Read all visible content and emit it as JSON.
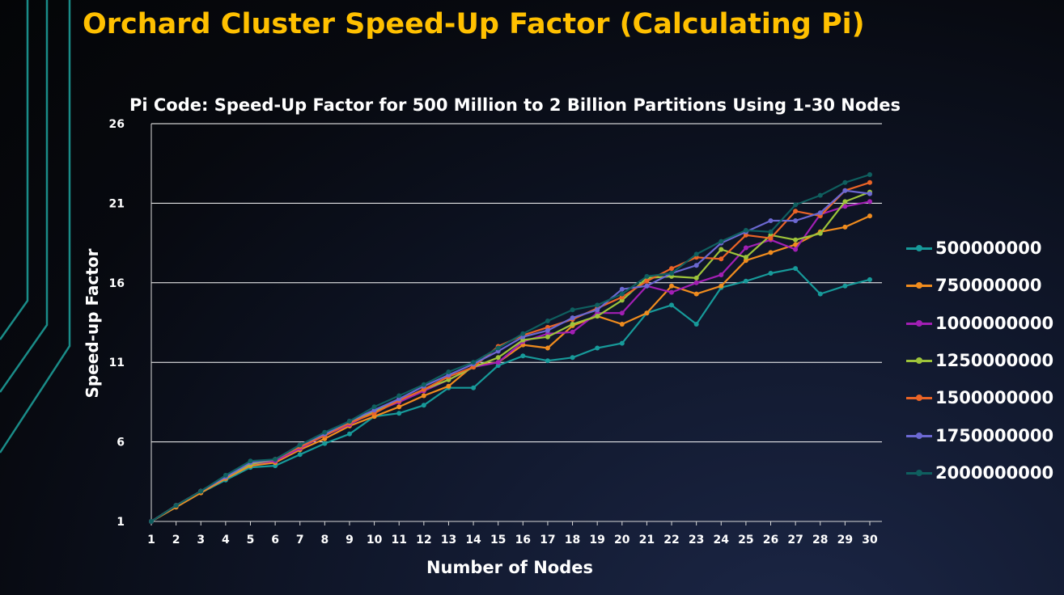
{
  "slide": {
    "title": "Orchard Cluster Speed-Up Factor (Calculating Pi)",
    "accent_color": "#ffc000",
    "decoration_color": "#1a8c88"
  },
  "chart_data": {
    "type": "line",
    "title": "Pi Code: Speed-Up Factor for 500 Million to 2 Billion Partitions Using 1-30 Nodes",
    "xlabel": "Number of Nodes",
    "ylabel": "Speed-up Factor",
    "x": [
      1,
      2,
      3,
      4,
      5,
      6,
      7,
      8,
      9,
      10,
      11,
      12,
      13,
      14,
      15,
      16,
      17,
      18,
      19,
      20,
      21,
      22,
      23,
      24,
      25,
      26,
      27,
      28,
      29,
      30
    ],
    "ylim": [
      1,
      26
    ],
    "yticks": [
      1,
      6,
      11,
      16,
      21,
      26
    ],
    "grid": "horizontal",
    "legend_position": "right",
    "series": [
      {
        "name": "500000000",
        "color": "#179a9a",
        "values": [
          1,
          1.9,
          2.8,
          3.6,
          4.4,
          4.5,
          5.2,
          5.9,
          6.5,
          7.6,
          7.8,
          8.3,
          9.4,
          9.4,
          10.8,
          11.4,
          11.1,
          11.3,
          11.9,
          12.2,
          14.1,
          14.6,
          13.4,
          15.7,
          16.1,
          16.6,
          16.9,
          15.3,
          15.8,
          16.2
        ]
      },
      {
        "name": "750000000",
        "color": "#f08c1e",
        "values": [
          1,
          1.9,
          2.8,
          3.7,
          4.5,
          4.7,
          5.5,
          6.2,
          7.0,
          7.6,
          8.2,
          8.9,
          9.5,
          10.8,
          11.0,
          12.1,
          11.9,
          13.3,
          13.9,
          13.4,
          14.1,
          15.8,
          15.3,
          15.8,
          17.4,
          17.9,
          18.4,
          19.2,
          19.5,
          20.2
        ]
      },
      {
        "name": "1000000000",
        "color": "#a21fb4",
        "values": [
          1,
          2.0,
          2.9,
          3.8,
          4.6,
          4.8,
          5.6,
          6.4,
          7.1,
          7.9,
          8.5,
          9.2,
          9.9,
          10.7,
          11.0,
          12.3,
          12.8,
          12.9,
          14.1,
          14.1,
          15.8,
          15.4,
          16.0,
          16.5,
          18.2,
          18.7,
          18.1,
          20.3,
          20.8,
          21.1
        ]
      },
      {
        "name": "1250000000",
        "color": "#9ec43a",
        "values": [
          1,
          2.0,
          2.9,
          3.8,
          4.6,
          4.9,
          5.7,
          6.4,
          7.2,
          7.9,
          8.6,
          9.3,
          9.9,
          10.7,
          11.3,
          12.4,
          12.6,
          13.4,
          13.9,
          14.9,
          16.3,
          16.4,
          16.3,
          18.1,
          17.6,
          19.0,
          18.7,
          19.1,
          21.1,
          21.7
        ]
      },
      {
        "name": "1500000000",
        "color": "#eb6426",
        "values": [
          1,
          2.0,
          2.9,
          3.8,
          4.7,
          4.9,
          5.7,
          6.4,
          7.2,
          7.8,
          8.6,
          9.3,
          10.1,
          10.7,
          12.0,
          12.7,
          13.2,
          13.7,
          14.4,
          15.1,
          16.1,
          16.9,
          17.6,
          17.5,
          19.0,
          18.8,
          20.5,
          20.2,
          21.8,
          22.3
        ]
      },
      {
        "name": "1750000000",
        "color": "#6c68d2",
        "values": [
          1,
          2.0,
          2.9,
          3.8,
          4.7,
          4.9,
          5.8,
          6.5,
          7.3,
          8.0,
          8.7,
          9.5,
          10.2,
          10.9,
          11.7,
          12.6,
          13.0,
          13.8,
          14.3,
          15.6,
          15.8,
          16.6,
          17.1,
          18.5,
          19.2,
          19.9,
          19.9,
          20.4,
          21.8,
          21.6
        ]
      },
      {
        "name": "2000000000",
        "color": "#0f5f5f",
        "values": [
          1,
          2.0,
          2.9,
          3.9,
          4.8,
          4.9,
          5.8,
          6.6,
          7.3,
          8.2,
          8.9,
          9.6,
          10.4,
          11.0,
          11.9,
          12.8,
          13.6,
          14.3,
          14.6,
          15.3,
          16.4,
          16.6,
          17.8,
          18.6,
          19.3,
          19.2,
          20.9,
          21.5,
          22.3,
          22.8
        ]
      }
    ]
  }
}
